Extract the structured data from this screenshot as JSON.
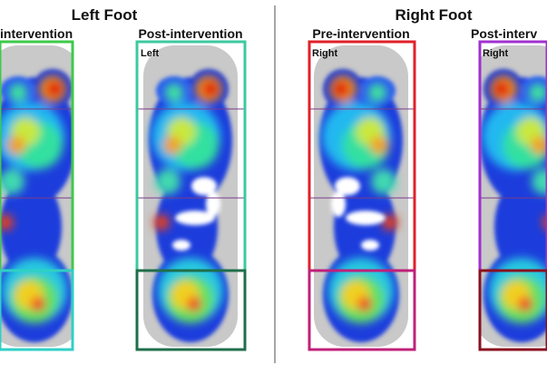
{
  "titles": {
    "left": "Left Foot",
    "right": "Right Foot"
  },
  "panels": [
    {
      "label": "intervention"
    },
    {
      "label": "Post-intervention",
      "foot_label": "Left"
    },
    {
      "label": "Pre-intervention",
      "foot_label": "Right"
    },
    {
      "label": "Post-interv",
      "foot_label": "Right"
    }
  ]
}
